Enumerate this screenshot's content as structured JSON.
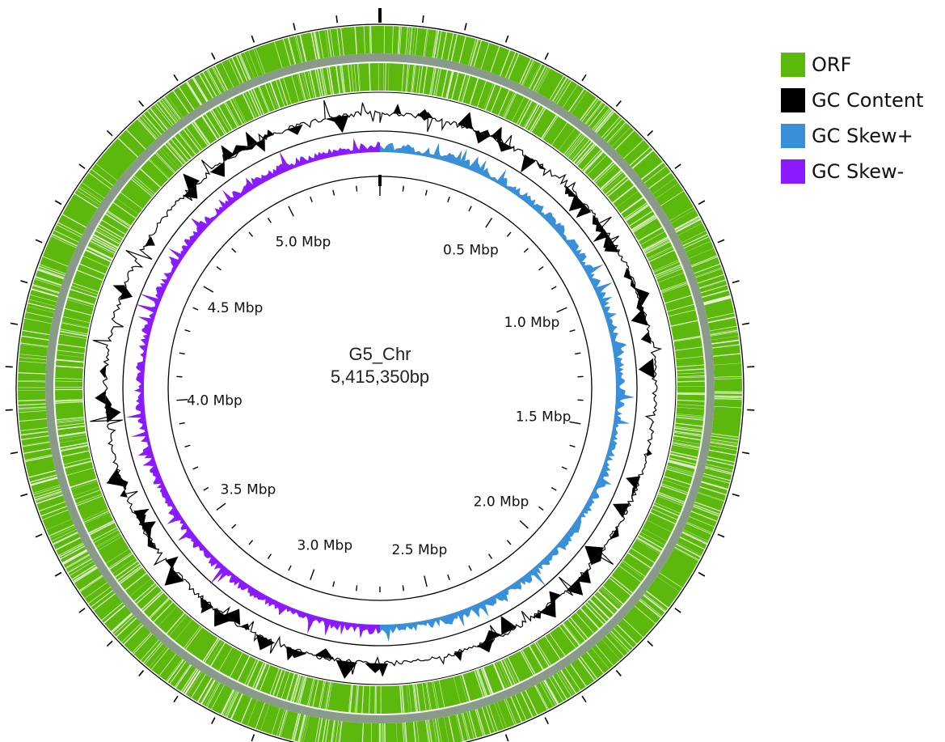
{
  "genome": {
    "name": "G5_Chr",
    "length_label": "5,415,350bp",
    "length_bp": 5415350
  },
  "tick_labels": [
    "0.5 Mbp",
    "1.0 Mbp",
    "1.5 Mbp",
    "2.0 Mbp",
    "2.5 Mbp",
    "3.0 Mbp",
    "3.5 Mbp",
    "4.0 Mbp",
    "4.5 Mbp",
    "5.0 Mbp"
  ],
  "tick_positions_mbp": [
    0.5,
    1.0,
    1.5,
    2.0,
    2.5,
    3.0,
    3.5,
    4.0,
    4.5,
    5.0
  ],
  "legend": [
    {
      "label": "ORF",
      "color": "#5cb80c"
    },
    {
      "label": "GC Content",
      "color": "#000000"
    },
    {
      "label": "GC Skew+",
      "color": "#3a8fd9"
    },
    {
      "label": "GC Skew-",
      "color": "#8a1aff"
    }
  ],
  "colors": {
    "orf": "#5cb80c",
    "orf_band": "#8a9a8a",
    "gc_content": "#000000",
    "gc_skew_pos": "#3a8fd9",
    "gc_skew_neg": "#8a1aff",
    "ring_line": "#000000"
  }
}
